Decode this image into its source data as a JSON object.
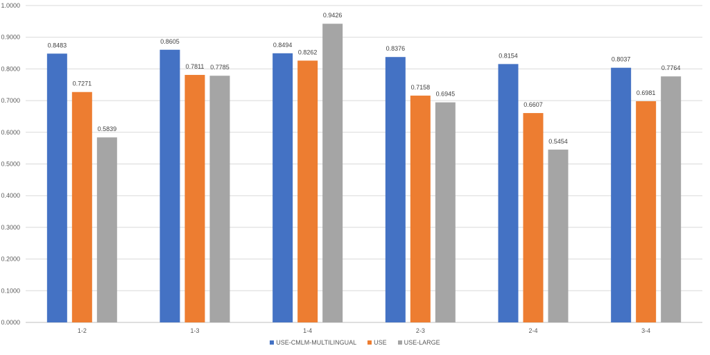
{
  "chart_data": {
    "type": "bar",
    "categories": [
      "1-2",
      "1-3",
      "1-4",
      "2-3",
      "2-4",
      "3-4"
    ],
    "series": [
      {
        "name": "USE-CMLM-MULTILINGUAL",
        "color": "#4472C4",
        "values": [
          0.8483,
          0.8605,
          0.8494,
          0.8376,
          0.8154,
          0.8037
        ]
      },
      {
        "name": "USE",
        "color": "#ED7D31",
        "values": [
          0.7271,
          0.7811,
          0.8262,
          0.7158,
          0.6607,
          0.6981
        ]
      },
      {
        "name": "USE-LARGE",
        "color": "#A5A5A5",
        "values": [
          0.5839,
          0.7785,
          0.9426,
          0.6945,
          0.5454,
          0.7764
        ]
      }
    ],
    "ylim": [
      0,
      1
    ],
    "yticks": [
      "0.0000",
      "0.1000",
      "0.2000",
      "0.3000",
      "0.4000",
      "0.5000",
      "0.6000",
      "0.7000",
      "0.8000",
      "0.9000",
      "1.0000"
    ],
    "grid": true,
    "legend_position": "bottom",
    "title": "",
    "xlabel": "",
    "ylabel": ""
  }
}
